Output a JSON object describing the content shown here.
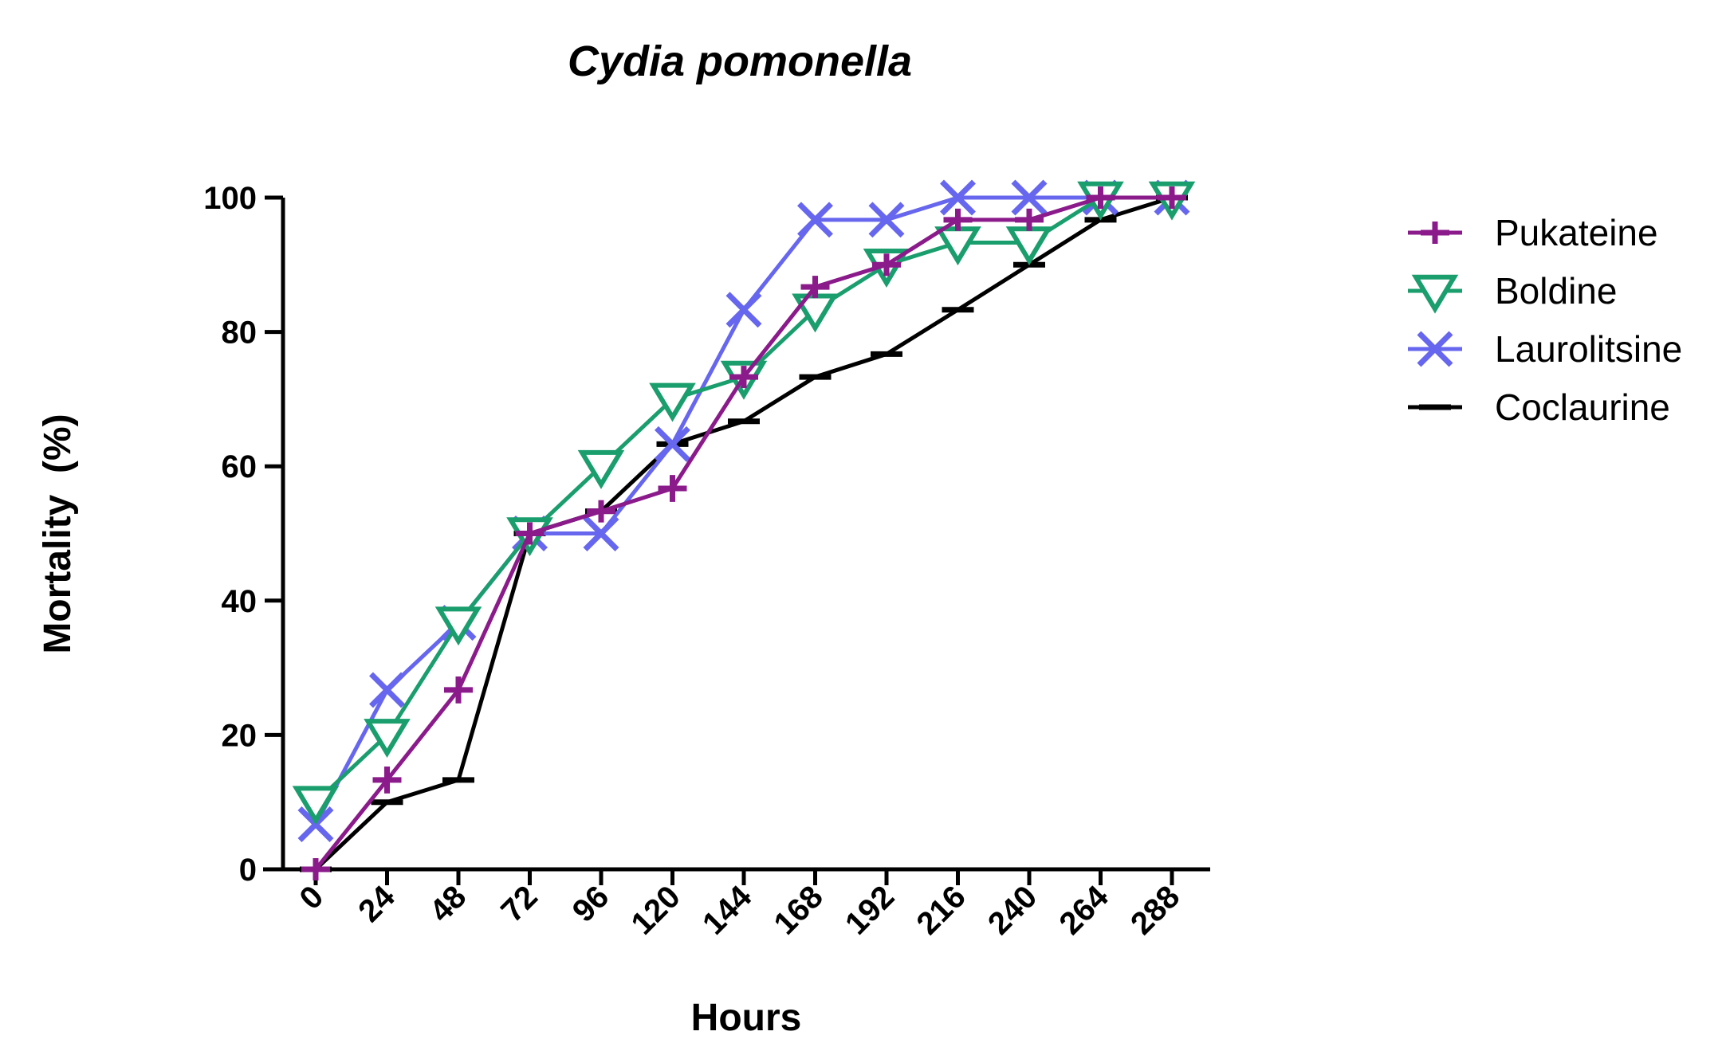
{
  "chart_data": {
    "type": "line",
    "title": "Cydia pomonella",
    "xlabel": "Hours",
    "ylabel": "Mortality  (%)",
    "x": [
      0,
      24,
      48,
      72,
      96,
      120,
      144,
      168,
      192,
      216,
      240,
      264,
      288
    ],
    "x_tick_labels": [
      "0",
      "24",
      "48",
      "72",
      "96",
      "120",
      "144",
      "168",
      "192",
      "216",
      "240",
      "264",
      "288"
    ],
    "y_ticks": [
      0,
      20,
      40,
      60,
      80,
      100
    ],
    "y_tick_labels": [
      "0",
      "20",
      "40",
      "60",
      "80",
      "100"
    ],
    "ylim": [
      0,
      100
    ],
    "legend_position": "right",
    "series": [
      {
        "name": "Pukateine",
        "color": "#8b1a8b",
        "marker": "plus",
        "values": [
          0,
          13.3,
          26.7,
          50,
          53.3,
          56.7,
          73.3,
          86.7,
          90,
          96.7,
          96.7,
          100,
          100
        ],
        "errors": [
          1.5,
          2,
          2,
          1,
          1,
          2,
          1.5,
          1.5,
          1.5,
          1.5,
          1.5,
          1,
          1
        ]
      },
      {
        "name": "Boldine",
        "color": "#1a9e6e",
        "marker": "triangle-down",
        "values": [
          10,
          20,
          36.7,
          50,
          60,
          70,
          73.3,
          83.3,
          90,
          93.3,
          93.3,
          100,
          100
        ],
        "errors": []
      },
      {
        "name": "Laurolitsine",
        "color": "#6666ee",
        "marker": "x",
        "values": [
          6.7,
          26.7,
          36.7,
          50,
          50,
          63.3,
          83.3,
          96.7,
          96.7,
          100,
          100,
          100,
          100
        ],
        "errors": []
      },
      {
        "name": "Coclaurine",
        "color": "#000000",
        "marker": "dash",
        "values": [
          0,
          10,
          13.3,
          50,
          53.3,
          63.3,
          66.7,
          73.3,
          76.7,
          83.3,
          90,
          96.7,
          100
        ],
        "errors": []
      }
    ]
  }
}
